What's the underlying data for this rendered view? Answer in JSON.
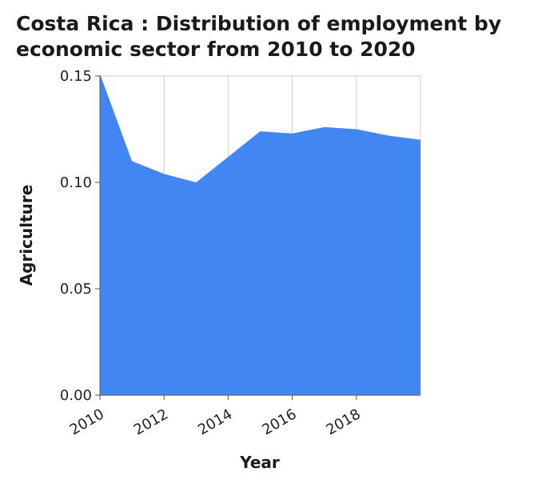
{
  "chart_data": {
    "type": "area",
    "title": "Costa Rica : Distribution of employment by economic sector from 2010 to 2020",
    "xlabel": "Year",
    "ylabel": "Agriculture",
    "x": [
      2010,
      2011,
      2012,
      2013,
      2014,
      2015,
      2016,
      2017,
      2018,
      2019,
      2020
    ],
    "series": [
      {
        "values": [
          0.151,
          0.11,
          0.104,
          0.1,
          0.112,
          0.124,
          0.123,
          0.126,
          0.125,
          0.122,
          0.12
        ]
      }
    ],
    "xlim": [
      2010,
      2020
    ],
    "ylim": [
      0,
      0.15
    ],
    "xticks": [
      2010,
      2012,
      2014,
      2016,
      2018
    ],
    "xtick_labels": [
      "2010",
      "2012",
      "2014",
      "2016",
      "2018"
    ],
    "yticks": [
      0,
      0.05,
      0.1,
      0.15
    ],
    "ytick_labels": [
      "0.00",
      "0.05",
      "0.10",
      "0.15"
    ],
    "grid": true,
    "fill_color": "#4286f4"
  }
}
